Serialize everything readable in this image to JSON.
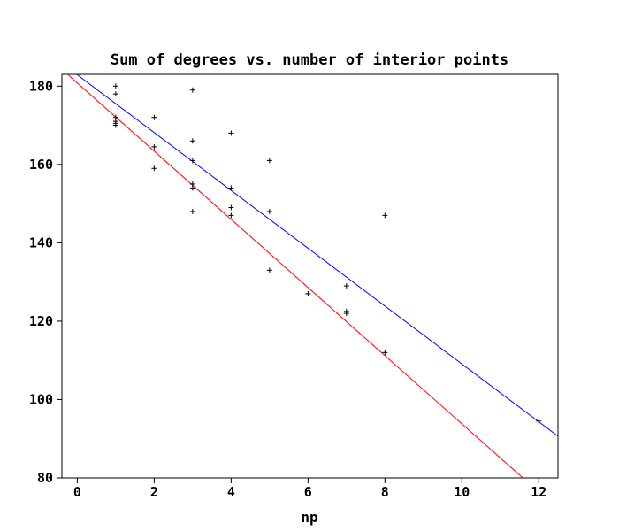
{
  "chart_data": {
    "type": "scatter",
    "title": "Sum of degrees vs. number of interior points",
    "xlabel": "np",
    "ylabel": "",
    "xlim": [
      -0.4,
      12.5
    ],
    "ylim": [
      80,
      183
    ],
    "x_ticks": [
      0,
      2,
      4,
      6,
      8,
      10,
      12
    ],
    "y_ticks": [
      80,
      100,
      120,
      140,
      160,
      180
    ],
    "x_tick_labels": [
      "0",
      "2",
      "4",
      "6",
      "8",
      "10",
      "12"
    ],
    "y_tick_labels": [
      "80",
      "100",
      "120",
      "140",
      "160",
      "180"
    ],
    "grid": false,
    "legend": "none",
    "points": [
      {
        "x": 1,
        "y": 180
      },
      {
        "x": 1,
        "y": 178
      },
      {
        "x": 1,
        "y": 172
      },
      {
        "x": 1,
        "y": 171
      },
      {
        "x": 1,
        "y": 170.5
      },
      {
        "x": 1,
        "y": 170
      },
      {
        "x": 2,
        "y": 172
      },
      {
        "x": 2,
        "y": 164.5
      },
      {
        "x": 2,
        "y": 159
      },
      {
        "x": 3,
        "y": 179
      },
      {
        "x": 3,
        "y": 166
      },
      {
        "x": 3,
        "y": 161
      },
      {
        "x": 3,
        "y": 155
      },
      {
        "x": 3,
        "y": 154
      },
      {
        "x": 3,
        "y": 148
      },
      {
        "x": 4,
        "y": 168
      },
      {
        "x": 4,
        "y": 154
      },
      {
        "x": 4,
        "y": 149
      },
      {
        "x": 4,
        "y": 147
      },
      {
        "x": 5,
        "y": 161
      },
      {
        "x": 5,
        "y": 148
      },
      {
        "x": 5,
        "y": 133
      },
      {
        "x": 6,
        "y": 127
      },
      {
        "x": 7,
        "y": 129
      },
      {
        "x": 7,
        "y": 122.5
      },
      {
        "x": 7,
        "y": 122
      },
      {
        "x": 8,
        "y": 147
      },
      {
        "x": 8,
        "y": 112
      },
      {
        "x": 12,
        "y": 94.5
      }
    ],
    "lines": [
      {
        "color": "#0000ff",
        "intercept": 182.9,
        "slope": -7.38
      },
      {
        "color": "#ff0000",
        "intercept": 180.8,
        "slope": -8.7
      }
    ],
    "point_color": "#000000"
  }
}
